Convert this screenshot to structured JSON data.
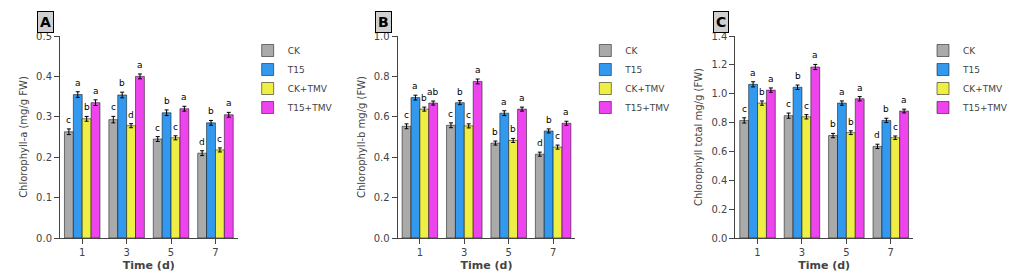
{
  "chart_data": [
    {
      "type": "bar",
      "title": "A",
      "xlabel": "Time (d)",
      "ylabel": "Chlorophyll-a (mg/g FW)",
      "categories": [
        "1",
        "3",
        "5",
        "7"
      ],
      "series": [
        {
          "name": "CK",
          "color": "#aaaaaa",
          "values": [
            0.263,
            0.293,
            0.245,
            0.21
          ],
          "errors": [
            0.007,
            0.008,
            0.006,
            0.006
          ],
          "annotations": [
            "c",
            "c",
            "c",
            "d"
          ]
        },
        {
          "name": "T15",
          "color": "#3399ee",
          "values": [
            0.355,
            0.354,
            0.31,
            0.285
          ],
          "errors": [
            0.007,
            0.007,
            0.007,
            0.006
          ],
          "annotations": [
            "a",
            "b",
            "b",
            "b"
          ]
        },
        {
          "name": "CK+TMV",
          "color": "#eeee44",
          "values": [
            0.295,
            0.278,
            0.248,
            0.218
          ],
          "errors": [
            0.006,
            0.005,
            0.005,
            0.005
          ],
          "annotations": [
            "b",
            "d",
            "c",
            "c"
          ]
        },
        {
          "name": "T15+TMV",
          "color": "#ee44ee",
          "values": [
            0.335,
            0.4,
            0.32,
            0.305
          ],
          "errors": [
            0.007,
            0.006,
            0.006,
            0.006
          ],
          "annotations": [
            "a",
            "a",
            "a",
            "a"
          ]
        }
      ],
      "ylim": [
        0.0,
        0.5
      ],
      "yticks": [
        {
          "value": 0.0,
          "label": "0.0"
        },
        0.1,
        0.2,
        0.3,
        0.4,
        0.5
      ],
      "grid": false,
      "legend": "right"
    },
    {
      "type": "bar",
      "title": "B",
      "xlabel": "Time (d)",
      "ylabel": "Chlorophyll-b mg/g (FW)",
      "categories": [
        "1",
        "3",
        "5",
        "7"
      ],
      "series": [
        {
          "name": "CK",
          "color": "#aaaaaa",
          "values": [
            0.553,
            0.558,
            0.47,
            0.415
          ],
          "errors": [
            0.012,
            0.012,
            0.01,
            0.01
          ],
          "annotations": [
            "c",
            "c",
            "b",
            "d"
          ]
        },
        {
          "name": "T15",
          "color": "#3399ee",
          "values": [
            0.695,
            0.67,
            0.618,
            0.53
          ],
          "errors": [
            0.012,
            0.01,
            0.012,
            0.01
          ],
          "annotations": [
            "a",
            "b",
            "a",
            "b"
          ]
        },
        {
          "name": "CK+TMV",
          "color": "#eeee44",
          "values": [
            0.638,
            0.555,
            0.483,
            0.45
          ],
          "errors": [
            0.01,
            0.01,
            0.01,
            0.01
          ],
          "annotations": [
            "b",
            "c",
            "b",
            "c"
          ]
        },
        {
          "name": "T15+TMV",
          "color": "#ee44ee",
          "values": [
            0.668,
            0.775,
            0.638,
            0.568
          ],
          "errors": [
            0.01,
            0.012,
            0.01,
            0.01
          ],
          "annotations": [
            "ab",
            "a",
            "a",
            "a"
          ]
        }
      ],
      "ylim": [
        0.0,
        1.0
      ],
      "yticks": [
        {
          "value": 0.0,
          "label": "0.0"
        },
        0.2,
        0.4,
        0.6,
        0.8,
        {
          "value": 1.0,
          "label": "1.0"
        }
      ],
      "grid": false,
      "legend": "right"
    },
    {
      "type": "bar",
      "title": "C",
      "xlabel": "Time (d)",
      "ylabel": "Chlorophyll total mg/g (FW)",
      "categories": [
        "1",
        "3",
        "5",
        "7"
      ],
      "series": [
        {
          "name": "CK",
          "color": "#aaaaaa",
          "values": [
            0.815,
            0.848,
            0.71,
            0.635
          ],
          "errors": [
            0.018,
            0.018,
            0.015,
            0.015
          ],
          "annotations": [
            "c",
            "c",
            "b",
            "d"
          ]
        },
        {
          "name": "T15",
          "color": "#3399ee",
          "values": [
            1.065,
            1.045,
            0.935,
            0.815
          ],
          "errors": [
            0.018,
            0.015,
            0.015,
            0.015
          ],
          "annotations": [
            "a",
            "b",
            "a",
            "b"
          ]
        },
        {
          "name": "CK+TMV",
          "color": "#eeee44",
          "values": [
            0.935,
            0.84,
            0.73,
            0.695
          ],
          "errors": [
            0.015,
            0.015,
            0.013,
            0.012
          ],
          "annotations": [
            "b",
            "c",
            "b",
            "c"
          ]
        },
        {
          "name": "T15+TMV",
          "color": "#ee44ee",
          "values": [
            1.025,
            1.185,
            0.965,
            0.88
          ],
          "errors": [
            0.015,
            0.018,
            0.015,
            0.013
          ],
          "annotations": [
            "a",
            "a",
            "a",
            "a"
          ]
        }
      ],
      "ylim": [
        0.0,
        1.4
      ],
      "yticks": [
        {
          "value": 0.0,
          "label": "0.0"
        },
        0.2,
        0.4,
        0.6,
        0.8,
        {
          "value": 1.0,
          "label": "1.0"
        },
        1.2,
        1.4
      ],
      "grid": false,
      "legend": "right"
    }
  ]
}
